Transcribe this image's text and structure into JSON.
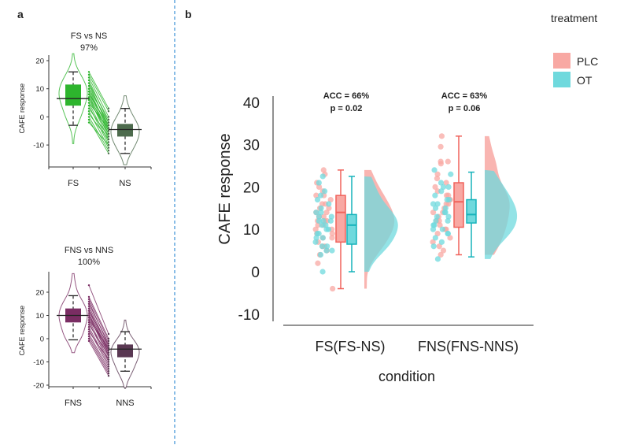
{
  "chart_data": [
    {
      "panel": "a",
      "type": "violin-paired",
      "title": "FS vs NS",
      "subtitle": "97%",
      "ylabel": "CAFE response",
      "categories": [
        "FS",
        "NS"
      ],
      "yticks": [
        20,
        10,
        0,
        -10
      ],
      "ylim": [
        -17,
        23
      ],
      "color": "#2db52d",
      "color_dark": "#4d6b4d",
      "groups": [
        {
          "name": "FS",
          "whisker_low": -3,
          "q1": 4,
          "median": 6.5,
          "q3": 11.5,
          "whisker_high": 16,
          "violin_range": [
            -9.5,
            22.5
          ]
        },
        {
          "name": "NS",
          "whisker_low": -13,
          "q1": -7,
          "median": -4.5,
          "q3": -2.5,
          "whisker_high": 3,
          "violin_range": [
            -17,
            7.5
          ]
        }
      ],
      "pairs": [
        [
          16,
          3
        ],
        [
          15,
          2
        ],
        [
          14,
          0
        ],
        [
          13,
          -2
        ],
        [
          12,
          -1
        ],
        [
          12,
          -4
        ],
        [
          11,
          -3
        ],
        [
          10,
          -5
        ],
        [
          10,
          -2
        ],
        [
          9,
          -6
        ],
        [
          9,
          -4
        ],
        [
          8,
          -7
        ],
        [
          8,
          -3
        ],
        [
          7,
          -5
        ],
        [
          7,
          -8
        ],
        [
          6,
          -6
        ],
        [
          5,
          -9
        ],
        [
          5,
          -4
        ],
        [
          4,
          -10
        ],
        [
          3,
          -7
        ],
        [
          2,
          -11
        ],
        [
          1,
          -8
        ],
        [
          0,
          -12
        ],
        [
          -1,
          -13
        ],
        [
          -2,
          -10
        ]
      ]
    },
    {
      "panel": "",
      "type": "violin-paired",
      "title": "FNS vs NNS",
      "subtitle": "100%",
      "ylabel": "CAFE response",
      "categories": [
        "FNS",
        "NNS"
      ],
      "yticks": [
        20,
        10,
        0,
        -10,
        -20
      ],
      "ylim": [
        -21,
        28
      ],
      "color": "#7a2d63",
      "color_dark": "#5a3853",
      "groups": [
        {
          "name": "FNS",
          "whisker_low": -0.5,
          "q1": 7,
          "median": 10,
          "q3": 13,
          "whisker_high": 18.5,
          "violin_range": [
            -6,
            28
          ]
        },
        {
          "name": "NNS",
          "whisker_low": -14,
          "q1": -8,
          "median": -4.5,
          "q3": -2.5,
          "whisker_high": 3,
          "violin_range": [
            -21,
            8
          ]
        }
      ],
      "pairs": [
        [
          23,
          2
        ],
        [
          18,
          0
        ],
        [
          17,
          -1
        ],
        [
          16,
          -3
        ],
        [
          15,
          -2
        ],
        [
          14,
          -4
        ],
        [
          13,
          -5
        ],
        [
          12,
          -3
        ],
        [
          12,
          -6
        ],
        [
          11,
          -7
        ],
        [
          10,
          -5
        ],
        [
          10,
          -8
        ],
        [
          9,
          -6
        ],
        [
          8,
          -9
        ],
        [
          8,
          -4
        ],
        [
          7,
          -10
        ],
        [
          6,
          -7
        ],
        [
          5,
          -11
        ],
        [
          4,
          -12
        ],
        [
          3,
          -9
        ],
        [
          2,
          -13
        ],
        [
          1,
          -14
        ],
        [
          0,
          -15
        ],
        [
          -1,
          -16
        ]
      ]
    },
    {
      "panel": "b",
      "type": "raincloud",
      "ylabel": "CAFE response",
      "xlabel": "condition",
      "yticks": [
        40,
        30,
        20,
        10,
        0,
        -10
      ],
      "ylim": [
        -10,
        40
      ],
      "legend": {
        "title": "treatment",
        "placement": "top-right",
        "entries": [
          {
            "name": "PLC",
            "color": "#f8a8a3"
          },
          {
            "name": "OT",
            "color": "#6fd9dd"
          }
        ]
      },
      "categories": [
        {
          "label": "FS(FS-NS)",
          "annotation": [
            "ACC = 66%",
            "p = 0.02"
          ],
          "series": [
            {
              "name": "PLC",
              "whisker_low": -4,
              "q1": 7,
              "median": 14,
              "q3": 18,
              "whisker_high": 24,
              "points": [
                24,
                23,
                21,
                20,
                19,
                18,
                18,
                17,
                16,
                16,
                15,
                15,
                14,
                14,
                13,
                13,
                12,
                12,
                12,
                11,
                11,
                10,
                10,
                9,
                9,
                8,
                8,
                7,
                6,
                6,
                5,
                4,
                2,
                -4
              ]
            },
            {
              "name": "OT",
              "whisker_low": 0,
              "q1": 6.5,
              "median": 11,
              "q3": 13.5,
              "whisker_high": 22.5,
              "points": [
                22.5,
                21,
                19,
                18,
                17,
                16,
                15,
                14,
                14,
                13,
                13,
                12,
                12,
                12,
                11,
                11,
                10,
                10,
                9,
                9,
                8,
                8,
                7,
                6,
                6,
                5,
                5,
                4,
                0
              ]
            }
          ]
        },
        {
          "label": "FNS(FNS-NNS)",
          "annotation": [
            "ACC = 63%",
            "p = 0.06"
          ],
          "series": [
            {
              "name": "PLC",
              "whisker_low": 4,
              "q1": 10.5,
              "median": 16.5,
              "q3": 21,
              "whisker_high": 32,
              "points": [
                32,
                29.5,
                26,
                25.5,
                26,
                23,
                22,
                21,
                20,
                19,
                18,
                18,
                17,
                17,
                16,
                16,
                15,
                14,
                14,
                13,
                12,
                12,
                11,
                10,
                10,
                9,
                8,
                7,
                6,
                5,
                4
              ]
            },
            {
              "name": "OT",
              "whisker_low": 3.5,
              "q1": 11.5,
              "median": 13.5,
              "q3": 17,
              "whisker_high": 23.5,
              "points": [
                24,
                23,
                21,
                20,
                20,
                19,
                18,
                17,
                17,
                16,
                16,
                15,
                15,
                14,
                14,
                13,
                13,
                12,
                12,
                11,
                11,
                10,
                10,
                9,
                9,
                8,
                7,
                6,
                3
              ]
            }
          ]
        }
      ],
      "stroke_colors": {
        "PLC": "#f0625b",
        "OT": "#17b3bb"
      }
    }
  ],
  "divider_color": "#3a8fd6"
}
